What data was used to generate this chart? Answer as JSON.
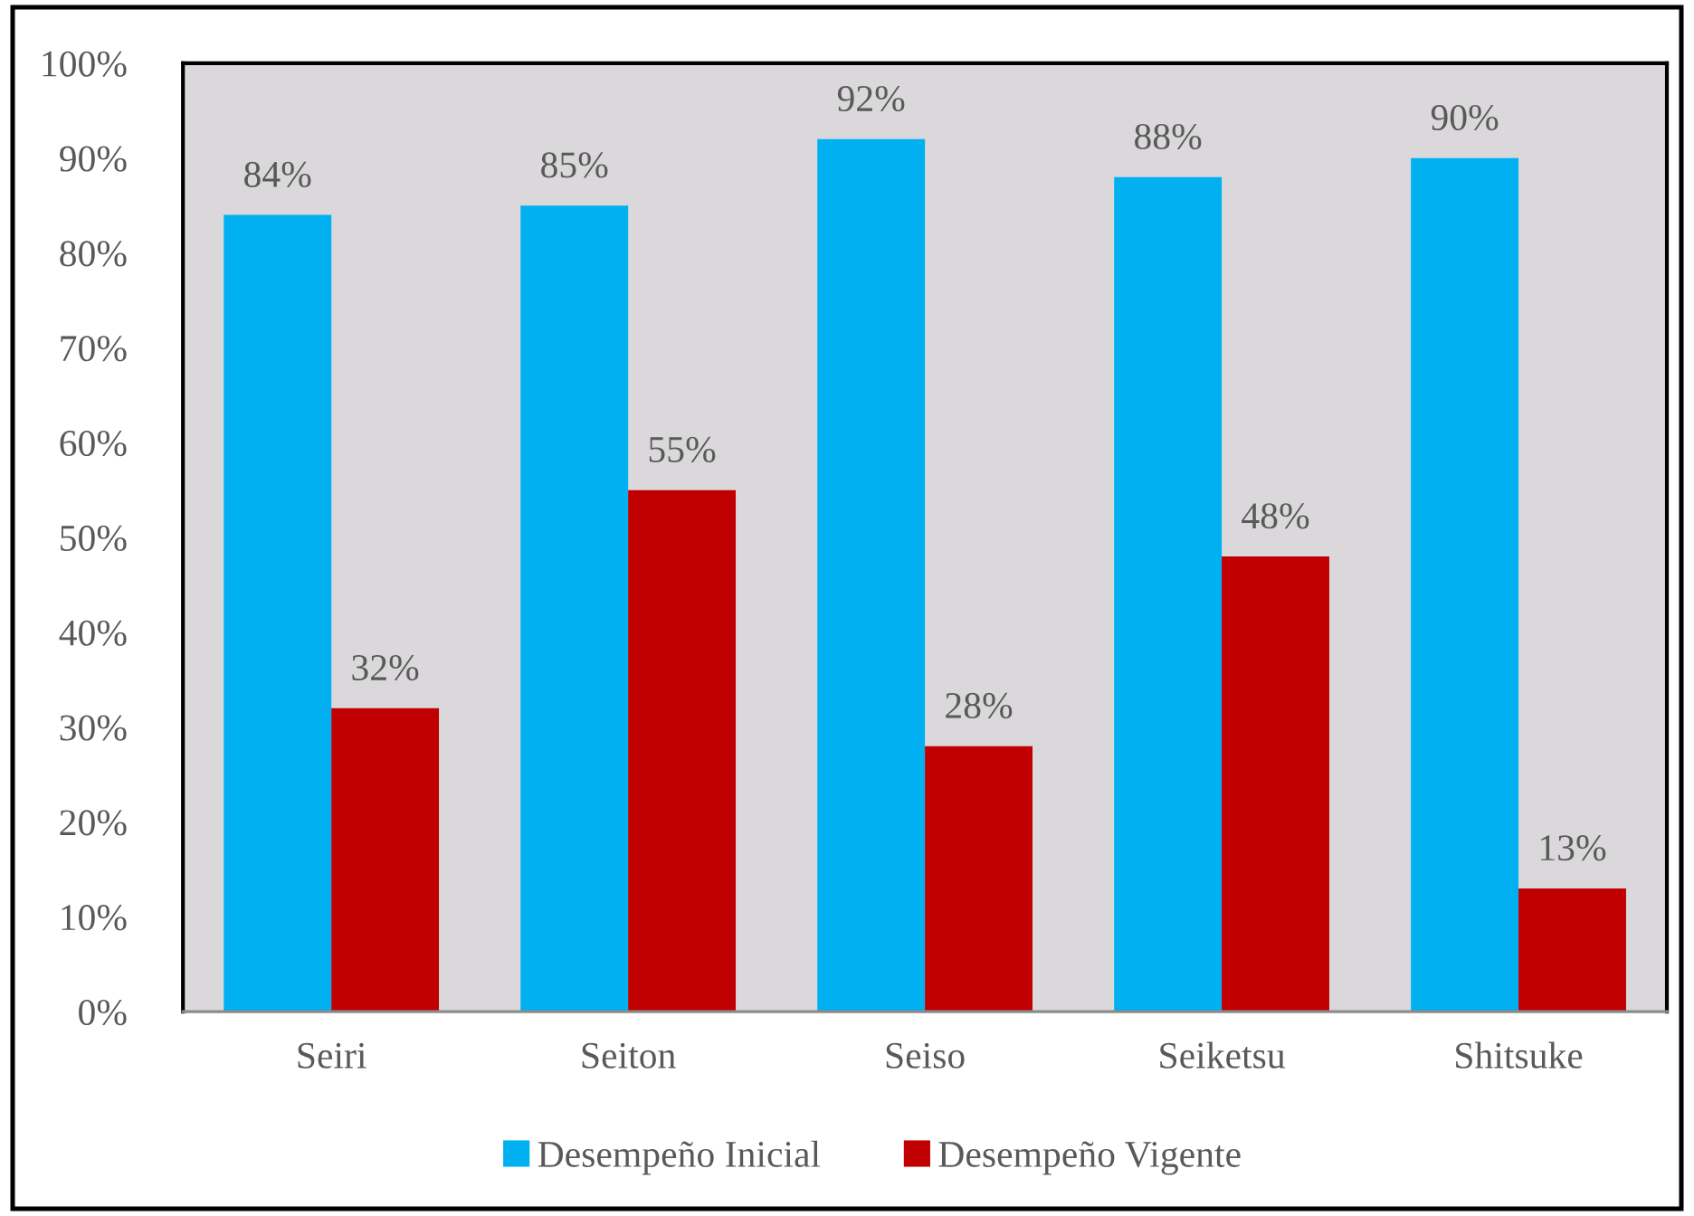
{
  "chart_data": {
    "type": "bar",
    "categories": [
      "Seiri",
      "Seiton",
      "Seiso",
      "Seiketsu",
      "Shitsuke"
    ],
    "series": [
      {
        "name": "Desempeño Inicial",
        "color": "#00b0f0",
        "values": [
          84,
          85,
          92,
          88,
          90
        ],
        "value_labels": [
          "84%",
          "85%",
          "92%",
          "88%",
          "90%"
        ]
      },
      {
        "name": "Desempeño Vigente",
        "color": "#c00000",
        "values": [
          32,
          55,
          28,
          48,
          13
        ],
        "value_labels": [
          "32%",
          "55%",
          "28%",
          "48%",
          "13%"
        ]
      }
    ],
    "ylim": [
      0,
      100
    ],
    "yticks": [
      {
        "value": 0,
        "label": "0%"
      },
      {
        "value": 10,
        "label": "10%"
      },
      {
        "value": 20,
        "label": "20%"
      },
      {
        "value": 30,
        "label": "30%"
      },
      {
        "value": 40,
        "label": "40%"
      },
      {
        "value": 50,
        "label": "50%"
      },
      {
        "value": 60,
        "label": "60%"
      },
      {
        "value": 70,
        "label": "70%"
      },
      {
        "value": 80,
        "label": "80%"
      },
      {
        "value": 90,
        "label": "90%"
      },
      {
        "value": 100,
        "label": "100%"
      }
    ],
    "grid": false,
    "legend": "bottom"
  }
}
